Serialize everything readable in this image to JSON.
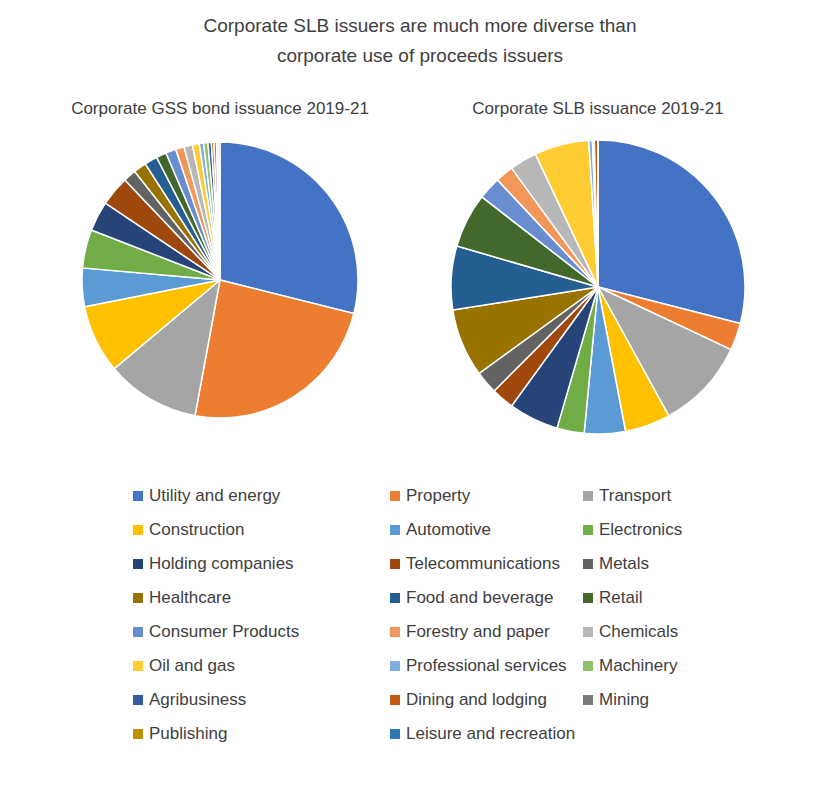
{
  "title": "Corporate SLB issuers are much more diverse than\ncorporate use of proceeds issuers",
  "chart_data": [
    {
      "type": "pie",
      "title": "Corporate GSS bond issuance 2019-21",
      "categories": [
        "Utility and energy",
        "Property",
        "Transport",
        "Construction",
        "Automotive",
        "Electronics",
        "Holding companies",
        "Telecommunications",
        "Metals",
        "Healthcare",
        "Food and beverage",
        "Retail",
        "Consumer Products",
        "Forestry and paper",
        "Chemicals",
        "Oil and gas",
        "Professional services",
        "Machinery",
        "Agribusiness",
        "Dining and lodging",
        "Mining",
        "Publishing",
        "Leisure and recreation"
      ],
      "values": [
        28.9,
        24,
        11,
        8,
        4.5,
        4.5,
        3.5,
        3.5,
        1.5,
        1.5,
        1.5,
        1.2,
        1.2,
        1,
        1,
        0.8,
        0.5,
        0.5,
        0.4,
        0.3,
        0.3,
        0.2,
        0.2
      ],
      "colors": [
        "#4472c4",
        "#ed7d31",
        "#a5a5a5",
        "#ffc000",
        "#5b9bd5",
        "#70ad47",
        "#264478",
        "#9e480e",
        "#636363",
        "#997300",
        "#255e91",
        "#43682b",
        "#698ed0",
        "#f1975a",
        "#b7b7b7",
        "#ffcd33",
        "#7cafdd",
        "#8cc168",
        "#335aa1",
        "#c55a11",
        "#7b7b7b",
        "#bf9000",
        "#2e75b6"
      ],
      "legend": "bottom"
    },
    {
      "type": "pie",
      "title": "Corporate SLB issuance 2019-21",
      "categories": [
        "Utility and energy",
        "Property",
        "Transport",
        "Construction",
        "Automotive",
        "Electronics",
        "Holding companies",
        "Telecommunications",
        "Metals",
        "Healthcare",
        "Food and beverage",
        "Retail",
        "Consumer Products",
        "Forestry and paper",
        "Chemicals",
        "Oil and gas",
        "Professional services",
        "Machinery",
        "Agribusiness",
        "Dining and lodging",
        "Mining",
        "Publishing",
        "Leisure and recreation"
      ],
      "values": [
        29,
        3,
        10,
        5,
        4.5,
        3,
        5.5,
        2.5,
        2.5,
        7.5,
        7,
        6,
        2.5,
        2,
        3,
        6,
        0.4,
        0.2,
        0,
        0.4,
        0,
        0,
        0
      ],
      "colors": [
        "#4472c4",
        "#ed7d31",
        "#a5a5a5",
        "#ffc000",
        "#5b9bd5",
        "#70ad47",
        "#264478",
        "#9e480e",
        "#636363",
        "#997300",
        "#255e91",
        "#43682b",
        "#698ed0",
        "#f1975a",
        "#b7b7b7",
        "#ffcd33",
        "#7cafdd",
        "#8cc168",
        "#335aa1",
        "#c55a11",
        "#7b7b7b",
        "#bf9000",
        "#2e75b6"
      ]
    }
  ]
}
